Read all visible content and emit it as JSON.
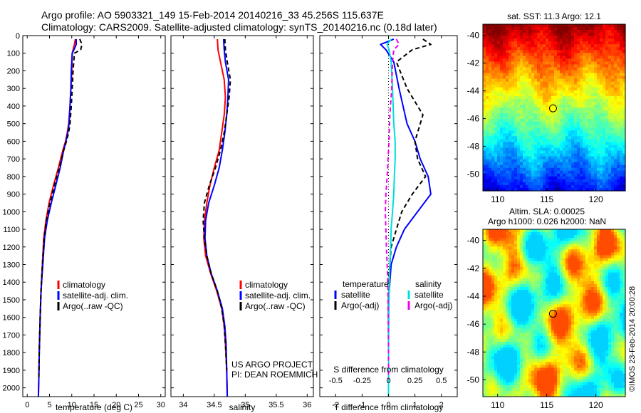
{
  "title": {
    "line1": "Argo profile: AO 5903321_149 15-Feb-2014 20140216_33 45.256S 115.637E",
    "line2": "Climatology: CARS2009. Satellite-adjusted climatology: synTS_20140216.nc (0.18d later)"
  },
  "credit": {
    "project": "US ARGO PROJECT",
    "pi": "PI: DEAN ROEMMICH",
    "stamp": "©IMOS 23-Feb-2014 20:00:28"
  },
  "colors": {
    "climatology": "#ff0000",
    "satellite": "#0000ff",
    "argo": "#000000",
    "sal_satellite": "#00dddd",
    "sal_argo": "#ee00ee"
  },
  "depth_axis": {
    "ticks": [
      0,
      100,
      200,
      300,
      400,
      500,
      600,
      700,
      800,
      900,
      1000,
      1100,
      1200,
      1300,
      1400,
      1500,
      1600,
      1700,
      1800,
      1900,
      2000
    ],
    "range": [
      0,
      2050
    ]
  },
  "chart_data": [
    {
      "type": "line",
      "xlabel": "temperature (deg C)",
      "xlim": [
        -1,
        31
      ],
      "xticks": [
        0,
        5,
        10,
        15,
        20,
        25,
        30
      ],
      "ylim": [
        2050,
        0
      ],
      "legend": {
        "placement": "bottom-left",
        "entries": [
          "climatology",
          "satellite-adj. clim.",
          "Argo(..raw -QC)"
        ]
      },
      "series": [
        {
          "name": "climatology",
          "color": "#ff0000",
          "dash": false,
          "x": [
            10.8,
            10.6,
            10.3,
            10.1,
            10.0,
            9.8,
            9.6,
            9.3,
            9.0,
            8.6,
            8.0,
            7.0,
            5.9,
            4.9,
            4.2,
            3.7,
            3.4,
            3.1,
            2.9,
            2.7,
            2.6,
            2.5
          ],
          "y": [
            20,
            50,
            80,
            100,
            200,
            300,
            400,
            500,
            550,
            600,
            650,
            750,
            850,
            950,
            1050,
            1150,
            1300,
            1450,
            1600,
            1800,
            1950,
            2050
          ]
        },
        {
          "name": "satellite-adj. clim.",
          "color": "#0000ff",
          "dash": false,
          "x": [
            11.0,
            11.0,
            10.5,
            10.1,
            9.9,
            9.8,
            9.6,
            9.4,
            9.1,
            8.7,
            8.2,
            7.4,
            6.4,
            5.4,
            4.5,
            3.9,
            3.5,
            3.1,
            2.9,
            2.7,
            2.6,
            2.5
          ],
          "y": [
            20,
            50,
            80,
            100,
            200,
            300,
            400,
            500,
            550,
            600,
            650,
            750,
            850,
            950,
            1050,
            1150,
            1300,
            1450,
            1600,
            1800,
            1950,
            2050
          ]
        },
        {
          "name": "Argo(..raw -QC)",
          "color": "#000000",
          "dash": true,
          "x": [
            11.8,
            12.3,
            12.0,
            10.6,
            10.3,
            10.1,
            9.9,
            9.6,
            9.3,
            8.8,
            8.2,
            7.2,
            6.1,
            5.1,
            4.3,
            3.8,
            3.4,
            3.1,
            2.9,
            2.7,
            2.6
          ],
          "y": [
            20,
            50,
            80,
            100,
            200,
            300,
            400,
            500,
            550,
            600,
            650,
            750,
            850,
            950,
            1050,
            1150,
            1300,
            1450,
            1600,
            1800,
            1950
          ]
        }
      ]
    },
    {
      "type": "line",
      "xlabel": "salinity",
      "xlim": [
        33.8,
        36.1
      ],
      "xticks": [
        34,
        34.5,
        35,
        35.5,
        36
      ],
      "ylim": [
        2050,
        0
      ],
      "legend": {
        "placement": "bottom-left",
        "entries": [
          "climatology",
          "satellite-adj. clim.",
          "Argo(..raw -QC)"
        ]
      },
      "series": [
        {
          "name": "climatology",
          "color": "#ff0000",
          "dash": false,
          "x": [
            34.55,
            34.56,
            34.6,
            34.66,
            34.68,
            34.66,
            34.62,
            34.58,
            34.5,
            34.43,
            34.38,
            34.34,
            34.33,
            34.36,
            34.44,
            34.54,
            34.62,
            34.66,
            34.68,
            34.7,
            34.71
          ],
          "y": [
            20,
            80,
            150,
            250,
            350,
            450,
            550,
            650,
            750,
            850,
            950,
            1050,
            1150,
            1250,
            1350,
            1450,
            1550,
            1650,
            1750,
            1900,
            2050
          ]
        },
        {
          "name": "satellite-adj. clim.",
          "color": "#0000ff",
          "dash": false,
          "x": [
            34.65,
            34.66,
            34.68,
            34.73,
            34.72,
            34.7,
            34.67,
            34.63,
            34.58,
            34.5,
            34.41,
            34.36,
            34.35,
            34.38,
            34.45,
            34.55,
            34.63,
            34.67,
            34.69,
            34.7,
            34.71
          ],
          "y": [
            20,
            80,
            150,
            250,
            350,
            450,
            550,
            650,
            750,
            850,
            950,
            1050,
            1150,
            1250,
            1350,
            1450,
            1550,
            1650,
            1750,
            1900,
            2050
          ]
        },
        {
          "name": "Argo(..raw -QC)",
          "color": "#000000",
          "dash": true,
          "x": [
            34.67,
            34.68,
            34.71,
            34.76,
            34.74,
            34.7,
            34.66,
            34.6,
            34.52,
            34.42,
            34.34,
            34.32,
            34.34,
            34.38,
            34.45,
            34.55,
            34.62,
            34.66,
            34.68,
            34.7
          ],
          "y": [
            20,
            80,
            150,
            250,
            350,
            450,
            550,
            650,
            750,
            850,
            950,
            1050,
            1150,
            1250,
            1350,
            1450,
            1550,
            1650,
            1750,
            1900
          ]
        }
      ]
    },
    {
      "type": "line",
      "xlabel": "T difference from climatology",
      "xlabel2": "S difference from climatology",
      "xlim": [
        -2.6,
        2.6
      ],
      "xticks": [
        -2,
        -1,
        0,
        1,
        2
      ],
      "xticks_s": [
        -0.5,
        -0.25,
        0,
        0.25,
        0.5
      ],
      "ylim": [
        2050,
        0
      ],
      "legend": {
        "placement": "bottom",
        "temperature_header": "temperature",
        "salinity_header": "salinity",
        "entries_t": [
          "satellite",
          "Argo(-adj)"
        ],
        "entries_s": [
          "satellite",
          "Argo(-adj)"
        ]
      },
      "series": [
        {
          "name": "T satellite",
          "color": "#0000ff",
          "dash": false,
          "x": [
            0.2,
            -0.3,
            -0.1,
            0.2,
            0.4,
            0.7,
            1.0,
            1.2,
            1.5,
            1.6,
            1.1,
            0.6,
            0.3,
            0.1,
            0.05,
            0.0,
            0.0,
            0.0,
            0.0,
            0.0
          ],
          "y": [
            20,
            50,
            80,
            150,
            300,
            500,
            600,
            700,
            800,
            900,
            1000,
            1100,
            1200,
            1300,
            1400,
            1500,
            1600,
            1800,
            1950,
            2050
          ]
        },
        {
          "name": "T Argo(-adj)",
          "color": "#000000",
          "dash": true,
          "x": [
            1.3,
            1.6,
            0.9,
            0.3,
            0.7,
            1.3,
            1.0,
            1.1,
            1.4,
            0.9,
            0.5,
            0.3,
            0.1,
            0.05,
            0.0,
            0.0,
            0.0,
            0.0,
            0.0
          ],
          "y": [
            20,
            50,
            80,
            150,
            300,
            450,
            600,
            700,
            800,
            900,
            1000,
            1100,
            1200,
            1300,
            1400,
            1500,
            1600,
            1800,
            1950
          ]
        },
        {
          "name": "S satellite",
          "color": "#00dddd",
          "dash": false,
          "x": [
            0.1,
            -0.05,
            0.02,
            0.1,
            0.15,
            0.2,
            0.25,
            0.25,
            0.22,
            0.2,
            0.15,
            0.1,
            0.08,
            0.05,
            0.03,
            0.02,
            0.01,
            0.0,
            0.0,
            0.0
          ],
          "y": [
            20,
            50,
            80,
            150,
            300,
            500,
            600,
            700,
            800,
            900,
            1000,
            1100,
            1200,
            1300,
            1400,
            1500,
            1600,
            1800,
            1950,
            2050
          ]
        },
        {
          "name": "S Argo(-adj)",
          "color": "#ee00ee",
          "dash": true,
          "x": [
            0.3,
            0.4,
            0.2,
            0.15,
            0.12,
            0.05,
            0.02,
            -0.02,
            -0.05,
            -0.1,
            -0.12,
            -0.1,
            -0.08,
            -0.05,
            -0.03,
            -0.02,
            -0.01,
            0.0,
            0.0
          ],
          "y": [
            20,
            50,
            80,
            150,
            300,
            450,
            600,
            700,
            800,
            900,
            1000,
            1100,
            1200,
            1300,
            1400,
            1500,
            1600,
            1800,
            1950
          ]
        }
      ]
    },
    {
      "type": "heatmap",
      "title": "sat. SST: 11.3  Argo: 12.1",
      "xticks": [
        110,
        115,
        120
      ],
      "yticks": [
        -40,
        -42,
        -44,
        -46,
        -48,
        -50
      ],
      "xlim": [
        108.5,
        123
      ],
      "ylim": [
        -51.2,
        -39.2
      ],
      "marker": {
        "lon": 115.637,
        "lat": -45.256
      }
    },
    {
      "type": "heatmap",
      "title_line1": "Altim. SLA: 0.00025",
      "title_line2": "Argo h1000: 0.026 h2000: NaN",
      "xticks": [
        110,
        115,
        120
      ],
      "yticks": [
        -40,
        -42,
        -44,
        -46,
        -48,
        -50
      ],
      "xlim": [
        108.5,
        123
      ],
      "ylim": [
        -51.2,
        -39.2
      ],
      "marker": {
        "lon": 115.637,
        "lat": -45.256
      }
    }
  ]
}
